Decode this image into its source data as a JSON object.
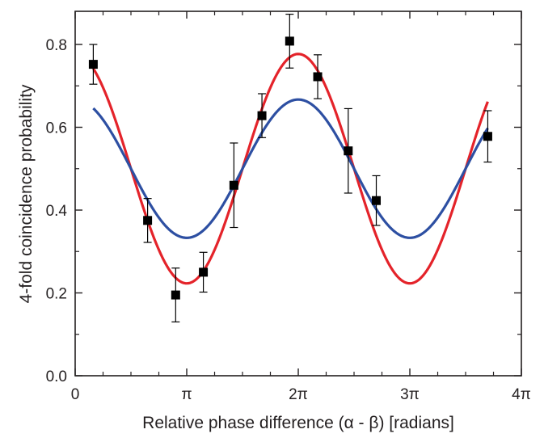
{
  "chart_data": {
    "type": "scatter",
    "title": "",
    "xlabel": "Relative phase difference (α - β) [radians]",
    "ylabel": "4-fold coincidence probability",
    "xlim": [
      0,
      12.566
    ],
    "ylim": [
      0,
      0.88
    ],
    "grid": false,
    "legend": "none",
    "x_ticks": [
      {
        "value": 0,
        "label": "0"
      },
      {
        "value": 3.1416,
        "label": "π"
      },
      {
        "value": 6.2832,
        "label": "2π"
      },
      {
        "value": 9.4248,
        "label": "3π"
      },
      {
        "value": 12.5664,
        "label": "4π"
      }
    ],
    "y_ticks": [
      {
        "value": 0.0,
        "label": "0.0"
      },
      {
        "value": 0.2,
        "label": "0.2"
      },
      {
        "value": 0.4,
        "label": "0.4"
      },
      {
        "value": 0.6,
        "label": "0.6"
      },
      {
        "value": 0.8,
        "label": "0.8"
      }
    ],
    "series": [
      {
        "kind": "points_with_errorbars",
        "color": "#000000",
        "points": [
          {
            "x": 0.51,
            "y": 0.752,
            "err": 0.048
          },
          {
            "x": 2.04,
            "y": 0.375,
            "err": 0.053
          },
          {
            "x": 2.83,
            "y": 0.195,
            "err": 0.065
          },
          {
            "x": 3.61,
            "y": 0.25,
            "err": 0.048
          },
          {
            "x": 4.47,
            "y": 0.46,
            "err": 0.102
          },
          {
            "x": 5.26,
            "y": 0.628,
            "err": 0.053
          },
          {
            "x": 6.04,
            "y": 0.808,
            "err": 0.065
          },
          {
            "x": 6.83,
            "y": 0.722,
            "err": 0.053
          },
          {
            "x": 7.69,
            "y": 0.543,
            "err": 0.102
          },
          {
            "x": 8.48,
            "y": 0.423,
            "err": 0.06
          },
          {
            "x": 11.62,
            "y": 0.578,
            "err": 0.062
          }
        ]
      },
      {
        "kind": "curve",
        "color": "#e4232a",
        "model": "cosine",
        "offset": 0.5,
        "amplitude": 0.277,
        "period": 6.2832,
        "phase": 6.2832,
        "x_range": [
          0.51,
          11.62
        ]
      },
      {
        "kind": "curve",
        "color": "#2d4fa2",
        "model": "cosine",
        "offset": 0.5,
        "amplitude": 0.167,
        "period": 6.2832,
        "phase": 6.2832,
        "x_range": [
          0.51,
          11.62
        ]
      }
    ]
  }
}
